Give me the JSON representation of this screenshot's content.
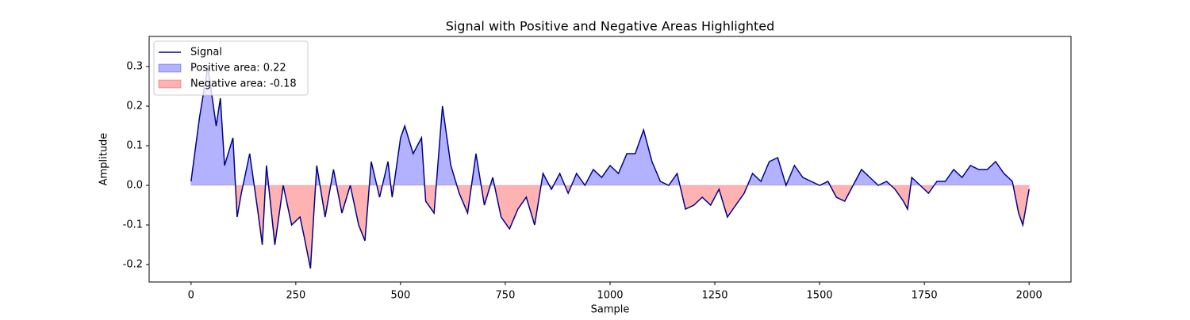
{
  "chart_data": {
    "type": "line",
    "title": "Signal with Positive and Negative Areas Highlighted",
    "x_label": "Sample",
    "y_label": "Amplitude",
    "x": [
      0,
      20,
      40,
      60,
      70,
      80,
      100,
      110,
      120,
      140,
      160,
      170,
      180,
      200,
      220,
      240,
      260,
      270,
      285,
      300,
      320,
      340,
      360,
      380,
      400,
      415,
      430,
      450,
      470,
      480,
      500,
      510,
      530,
      550,
      560,
      580,
      600,
      620,
      640,
      660,
      680,
      700,
      720,
      740,
      760,
      780,
      800,
      820,
      840,
      860,
      880,
      900,
      920,
      940,
      960,
      980,
      1000,
      1020,
      1040,
      1060,
      1080,
      1100,
      1120,
      1140,
      1160,
      1180,
      1200,
      1220,
      1240,
      1260,
      1280,
      1300,
      1320,
      1340,
      1360,
      1380,
      1400,
      1420,
      1440,
      1460,
      1480,
      1500,
      1520,
      1540,
      1560,
      1580,
      1600,
      1620,
      1640,
      1660,
      1680,
      1700,
      1710,
      1720,
      1740,
      1760,
      1780,
      1800,
      1820,
      1840,
      1860,
      1880,
      1900,
      1920,
      1940,
      1960,
      1975,
      1985,
      2000
    ],
    "series": [
      {
        "name": "Signal",
        "color": "#00008b",
        "values": [
          0.01,
          0.17,
          0.3,
          0.15,
          0.22,
          0.05,
          0.12,
          -0.08,
          -0.02,
          0.08,
          -0.07,
          -0.15,
          0.05,
          -0.15,
          0.0,
          -0.1,
          -0.08,
          -0.13,
          -0.21,
          0.05,
          -0.08,
          0.04,
          -0.07,
          0.0,
          -0.1,
          -0.14,
          0.06,
          -0.03,
          0.06,
          -0.03,
          0.12,
          0.15,
          0.08,
          0.12,
          -0.04,
          -0.07,
          0.2,
          0.05,
          -0.02,
          -0.07,
          0.08,
          -0.05,
          0.02,
          -0.08,
          -0.11,
          -0.06,
          -0.03,
          -0.1,
          0.03,
          -0.01,
          0.03,
          -0.02,
          0.03,
          0.0,
          0.04,
          0.02,
          0.05,
          0.03,
          0.08,
          0.08,
          0.14,
          0.06,
          0.01,
          0.0,
          0.03,
          -0.06,
          -0.05,
          -0.03,
          -0.05,
          -0.01,
          -0.08,
          -0.05,
          -0.02,
          0.03,
          0.01,
          0.06,
          0.07,
          0.0,
          0.05,
          0.02,
          0.01,
          0.0,
          0.01,
          -0.03,
          -0.04,
          0.0,
          0.04,
          0.02,
          0.0,
          0.01,
          -0.01,
          -0.04,
          -0.06,
          0.02,
          0.0,
          -0.02,
          0.01,
          0.01,
          0.04,
          0.02,
          0.05,
          0.04,
          0.04,
          0.06,
          0.03,
          0.01,
          -0.07,
          -0.1,
          -0.01
        ]
      }
    ],
    "areas": [
      {
        "name": "Positive area: 0.22",
        "color": "#0000ff",
        "alpha": 0.3,
        "sign": "positive"
      },
      {
        "name": "Negative area: -0.18",
        "color": "#ff0000",
        "alpha": 0.3,
        "sign": "negative"
      }
    ],
    "xlim": [
      -100,
      2100
    ],
    "xticks": [
      0,
      250,
      500,
      750,
      1000,
      1250,
      1500,
      1750,
      2000
    ],
    "ylim": [
      -0.244,
      0.376
    ],
    "yticks": [
      -0.2,
      -0.1,
      {
        "value": 0,
        "label": "0.0"
      },
      0.1,
      0.2,
      0.3
    ],
    "legend": "upper left"
  }
}
